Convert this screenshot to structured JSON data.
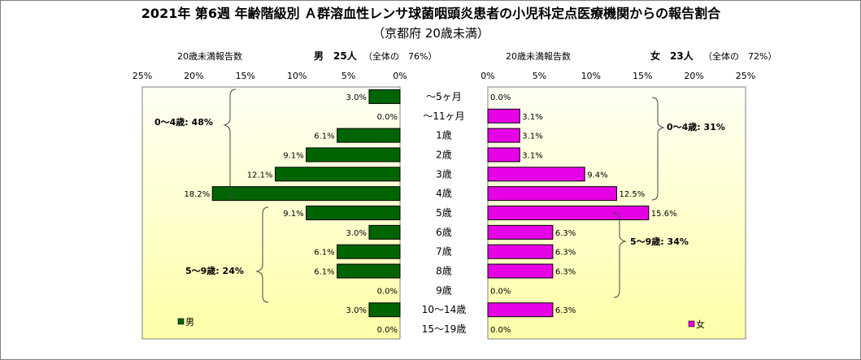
{
  "colors": {
    "male": "#006400",
    "female": "#E600E6",
    "bar_stroke": "#000000",
    "plot_top": "#FFFFF5",
    "plot_bottom": "#FFFFA8",
    "bracket": "#444444"
  },
  "chart_data": {
    "type": "bar",
    "title": "2021年 第6週 年齢階級別 Ａ群溶血性レンサ球菌咽頭炎患者の小児科定点医療機関からの報告割合",
    "subtitle": "（京都府 20歳未満）",
    "categories": [
      "～5ヶ月",
      "～11ヶ月",
      "1歳",
      "2歳",
      "3歳",
      "4歳",
      "5歳",
      "6歳",
      "7歳",
      "8歳",
      "9歳",
      "10～14歳",
      "15～19歳"
    ],
    "xlim": [
      0,
      25
    ],
    "ticks": [
      "25%",
      "20%",
      "15%",
      "10%",
      "5%",
      "0%"
    ],
    "ticks_right": [
      "0%",
      "5%",
      "10%",
      "15%",
      "20%",
      "25%"
    ],
    "series": [
      {
        "name": "男",
        "values": [
          3.0,
          0.0,
          6.1,
          9.1,
          12.1,
          18.2,
          9.1,
          3.0,
          6.1,
          6.1,
          0.0,
          3.0,
          0.0
        ],
        "labels": [
          "3.0%",
          "0.0%",
          "6.1%",
          "9.1%",
          "12.1%",
          "18.2%",
          "9.1%",
          "3.0%",
          "6.1%",
          "6.1%",
          "0.0%",
          "3.0%",
          "0.0%"
        ]
      },
      {
        "name": "女",
        "values": [
          0.0,
          3.1,
          3.1,
          3.1,
          9.4,
          12.5,
          15.6,
          6.3,
          6.3,
          6.3,
          0.0,
          6.3,
          0.0
        ],
        "labels": [
          "0.0%",
          "3.1%",
          "3.1%",
          "3.1%",
          "9.4%",
          "12.5%",
          "15.6%",
          "6.3%",
          "6.3%",
          "6.3%",
          "0.0%",
          "6.3%",
          "0.0%"
        ]
      }
    ],
    "headers": {
      "left_label": "20歳未満報告数",
      "left_count": "男　25人",
      "left_share": "（全体の　76%）",
      "right_label": "20歳未満報告数",
      "right_count": "女　23人",
      "right_share": "（全体の　72%）"
    },
    "annotations": {
      "male_0_4": "0～4歳: 48%",
      "male_5_9": "5～9歳: 24%",
      "female_0_4": "0～4歳: 31%",
      "female_5_9": "5～9歳: 34%"
    },
    "legend": [
      "男",
      "女"
    ],
    "legend_position": "bottom"
  }
}
